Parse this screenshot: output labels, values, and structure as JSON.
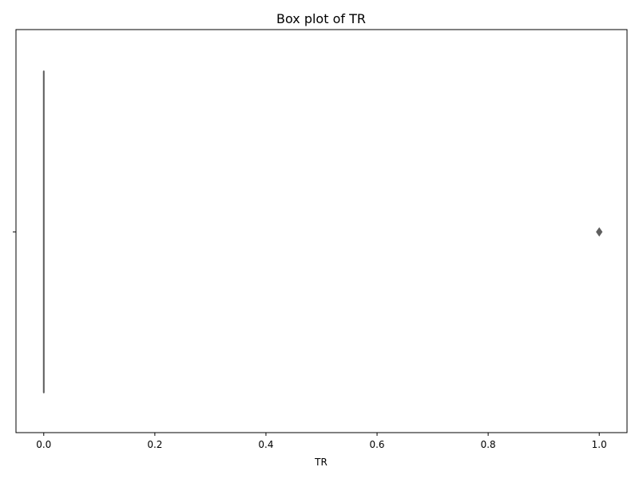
{
  "chart_data": {
    "type": "box",
    "title": "Box plot of TR",
    "xlabel": "TR",
    "ylabel": "",
    "xlim": [
      -0.05,
      1.05
    ],
    "x_ticks": [
      0.0,
      0.2,
      0.4,
      0.6,
      0.8,
      1.0
    ],
    "x_tick_labels": [
      "0.0",
      "0.2",
      "0.4",
      "0.6",
      "0.8",
      "1.0"
    ],
    "y_ticks": [
      ""
    ],
    "grid": false,
    "orientation": "horizontal",
    "box": {
      "min": 0,
      "q1": 0,
      "median": 0,
      "q3": 0,
      "max": 0,
      "outliers": [
        1
      ]
    },
    "colors": {
      "box_line": "#5f5f5f",
      "outlier_fill": "#5f5f5f"
    }
  }
}
